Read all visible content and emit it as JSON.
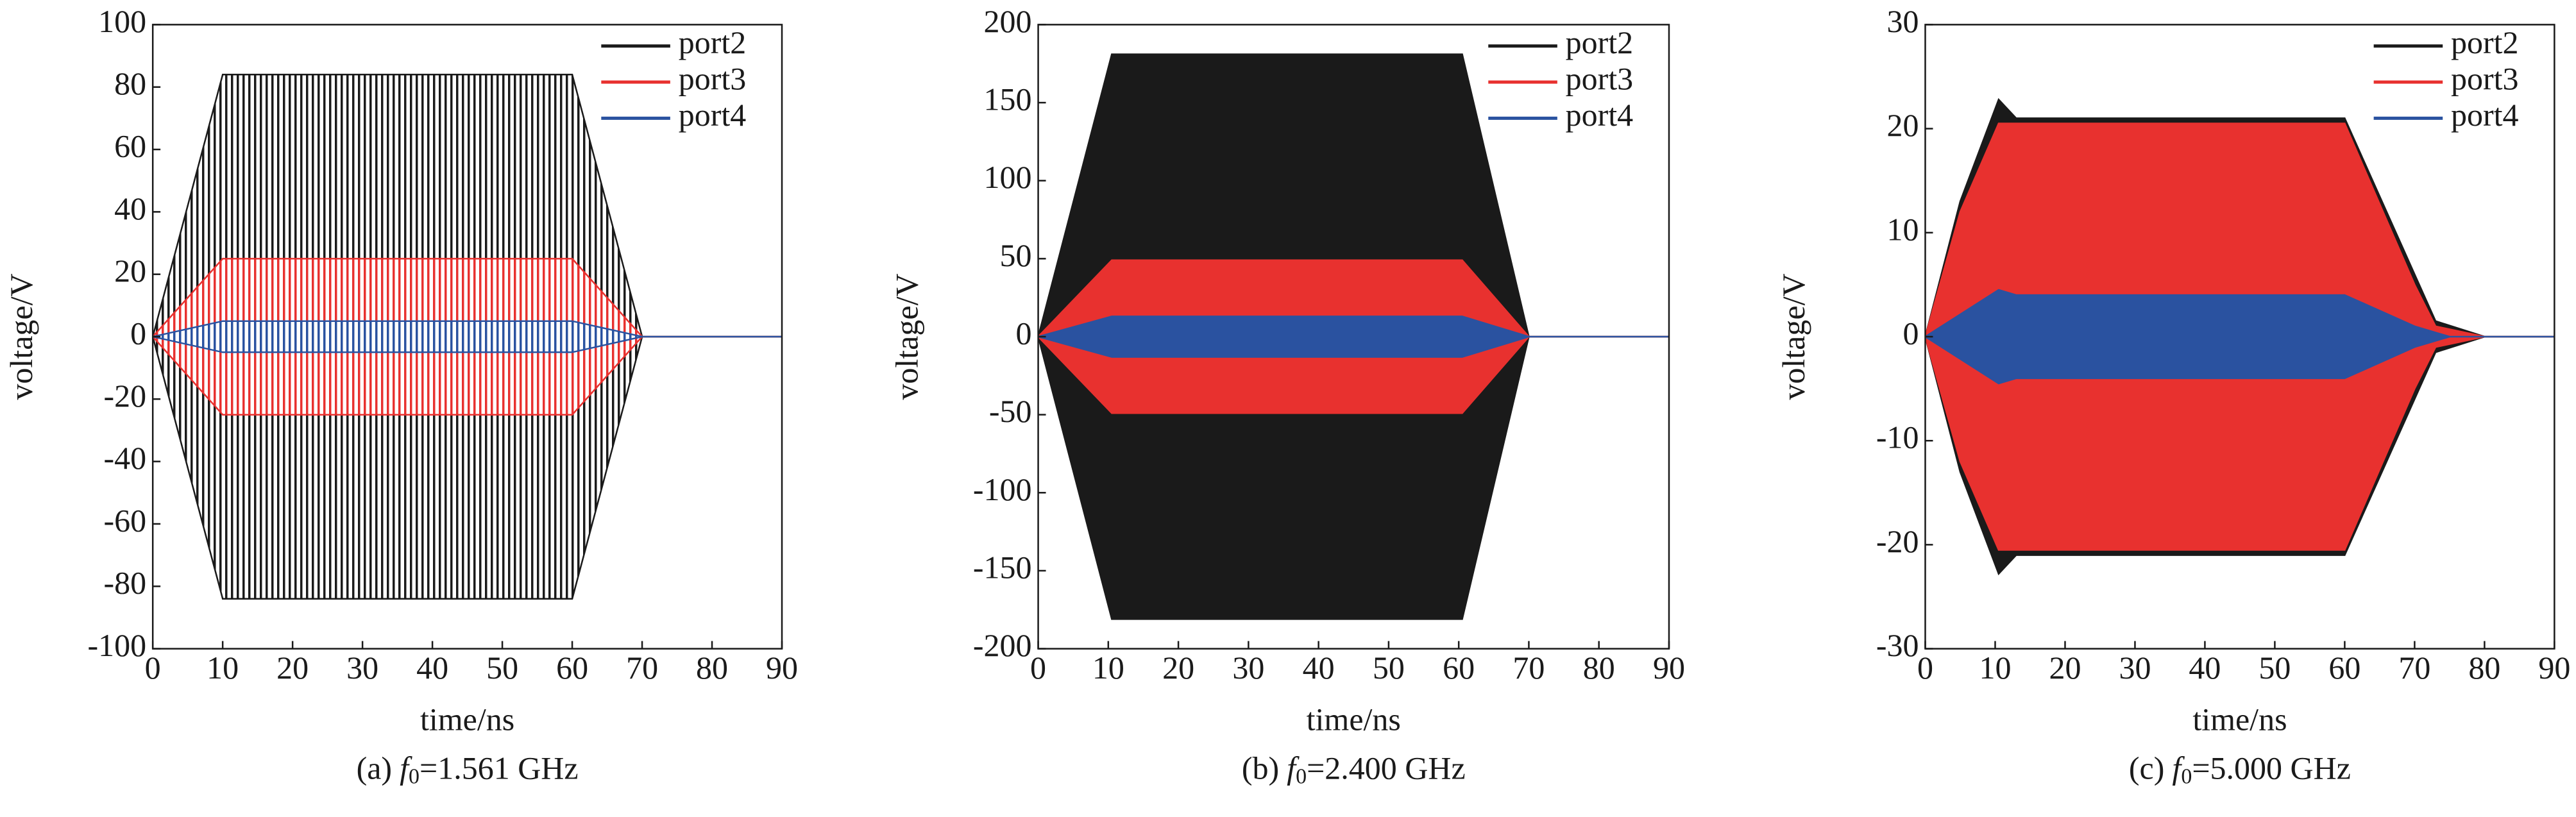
{
  "chart_data": [
    {
      "type": "area",
      "caption": {
        "prefix": "(a)",
        "symbol": "f",
        "subscript": "0",
        "text": "=1.561 GHz"
      },
      "x_label": "time/ns",
      "y_label": "voltage/V",
      "fill_style": "stripes",
      "xlim": [
        0,
        90
      ],
      "xticks": [
        0,
        10,
        20,
        30,
        40,
        50,
        60,
        70,
        80,
        90
      ],
      "ylim": [
        -100,
        100
      ],
      "yticks": [
        -100,
        -80,
        -60,
        -40,
        -20,
        0,
        20,
        40,
        60,
        80,
        100
      ],
      "legend": "upper right",
      "series": [
        {
          "name": "port2",
          "color": "#1a1a1a",
          "x": [
            0,
            10,
            60,
            70,
            90
          ],
          "values": [
            0,
            84,
            84,
            0,
            0
          ]
        },
        {
          "name": "port3",
          "color": "#e8312f",
          "x": [
            0,
            10,
            60,
            70,
            90
          ],
          "values": [
            0,
            25,
            25,
            0,
            0
          ]
        },
        {
          "name": "port4",
          "color": "#2a52a0",
          "x": [
            0,
            10,
            60,
            70,
            90
          ],
          "values": [
            0,
            5,
            5,
            0,
            0
          ]
        }
      ]
    },
    {
      "type": "area",
      "caption": {
        "prefix": "(b)",
        "symbol": "f",
        "subscript": "0",
        "text": "=2.400 GHz"
      },
      "x_label": "time/ns",
      "y_label": "voltage/V",
      "fill_style": "solid",
      "xlim": [
        0,
        90
      ],
      "xticks": [
        0,
        10,
        20,
        30,
        40,
        50,
        60,
        70,
        80,
        90
      ],
      "ylim": [
        -200,
        200
      ],
      "yticks": [
        -200,
        -150,
        -100,
        -50,
        0,
        50,
        100,
        150,
        200
      ],
      "legend": "upper right",
      "series": [
        {
          "name": "port2",
          "color": "#1a1a1a",
          "x": [
            0,
            10.5,
            60.5,
            70,
            90
          ],
          "values": [
            0,
            181,
            181,
            0,
            0
          ]
        },
        {
          "name": "port3",
          "color": "#e8312f",
          "x": [
            0,
            10.5,
            60.5,
            70,
            90
          ],
          "values": [
            0,
            49,
            49,
            0,
            0
          ]
        },
        {
          "name": "port4",
          "color": "#2a52a0",
          "x": [
            0,
            10.5,
            60.5,
            70,
            90
          ],
          "values": [
            0,
            13,
            13,
            0,
            0
          ]
        }
      ]
    },
    {
      "type": "area",
      "caption": {
        "prefix": "(c)",
        "symbol": "f",
        "subscript": "0",
        "text": "=5.000 GHz"
      },
      "x_label": "time/ns",
      "y_label": "voltage/V",
      "fill_style": "solid",
      "xlim": [
        0,
        90
      ],
      "xticks": [
        0,
        10,
        20,
        30,
        40,
        50,
        60,
        70,
        80,
        90
      ],
      "ylim": [
        -30,
        30
      ],
      "yticks": [
        -30,
        -20,
        -10,
        0,
        10,
        20,
        30
      ],
      "legend": "upper right",
      "series": [
        {
          "name": "port2",
          "color": "#1a1a1a",
          "x": [
            0,
            5,
            10.5,
            13,
            60,
            70,
            73,
            80,
            90
          ],
          "values": [
            0,
            13,
            22.8,
            21,
            21,
            6,
            1.5,
            0,
            0
          ]
        },
        {
          "name": "port3",
          "color": "#e8312f",
          "x": [
            0,
            5,
            10.5,
            13,
            60,
            70,
            73,
            80,
            90
          ],
          "values": [
            0,
            12,
            20.5,
            20.5,
            20.5,
            5,
            1,
            0,
            0
          ]
        },
        {
          "name": "port4",
          "color": "#2a52a0",
          "x": [
            0,
            10.5,
            13,
            60,
            70,
            75,
            90
          ],
          "values": [
            0,
            4.5,
            4,
            4,
            1,
            0,
            0
          ]
        }
      ]
    }
  ]
}
